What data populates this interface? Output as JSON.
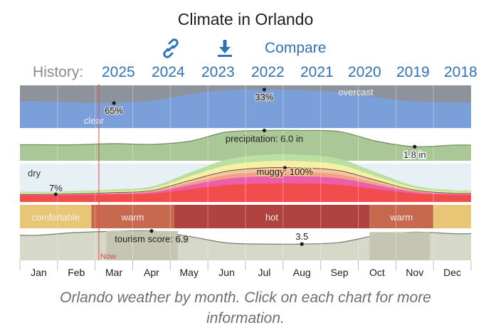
{
  "title": "Climate in Orlando",
  "toolbar": {
    "link_icon": "link-icon",
    "download_icon": "download-icon",
    "compare_label": "Compare"
  },
  "history": {
    "label": "History:",
    "years": [
      "2025",
      "2024",
      "2023",
      "2022",
      "2021",
      "2020",
      "2019",
      "2018"
    ]
  },
  "caption": "Orlando weather by month. Click on each chart for more information.",
  "chart_data": [
    {
      "type": "area",
      "name": "cloud-cover",
      "x": [
        "Jan",
        "Feb",
        "Mar",
        "Apr",
        "May",
        "Jun",
        "Jul",
        "Aug",
        "Sep",
        "Oct",
        "Nov",
        "Dec"
      ],
      "values": [
        62,
        64,
        65,
        60,
        45,
        35,
        33,
        35,
        40,
        52,
        62,
        64
      ],
      "labels": {
        "top": "overcast",
        "bottom": "clear"
      },
      "annotations": [
        {
          "x": "Mar",
          "text": "65%"
        },
        {
          "x": "Jul",
          "text": "33%"
        }
      ],
      "colors": {
        "clear": "#7a9fd9",
        "overcast": "#8e939b"
      }
    },
    {
      "type": "area",
      "name": "precipitation",
      "x": [
        "Jan",
        "Feb",
        "Mar",
        "Apr",
        "May",
        "Jun",
        "Jul",
        "Aug",
        "Sep",
        "Oct",
        "Nov",
        "Dec"
      ],
      "values": [
        2.3,
        2.3,
        2.6,
        2.4,
        3.2,
        5.6,
        6.0,
        6.0,
        5.7,
        3.2,
        1.8,
        2.2
      ],
      "annotations": [
        {
          "x": "Jul",
          "text": "precipitation: 6.0 in"
        },
        {
          "x": "Nov",
          "text": "1.8 in"
        }
      ],
      "color": "#a9c797"
    },
    {
      "type": "area",
      "name": "humidity",
      "x": [
        "Jan",
        "Feb",
        "Mar",
        "Apr",
        "May",
        "Jun",
        "Jul",
        "Aug",
        "Sep",
        "Oct",
        "Nov",
        "Dec"
      ],
      "values": [
        7,
        9,
        13,
        20,
        55,
        88,
        100,
        100,
        90,
        55,
        22,
        11
      ],
      "labels": {
        "low": "dry"
      },
      "annotations": [
        {
          "x": "Jan",
          "text": "7%"
        },
        {
          "x": "Aug",
          "text": "muggy: 100%"
        }
      ],
      "colors": [
        "#b9e0a0",
        "#f5f0a3",
        "#f7c49a",
        "#f0a08a",
        "#ec5ea9",
        "#f24d4d"
      ]
    },
    {
      "type": "bar",
      "name": "temperature-band",
      "segments": [
        {
          "label": "comfortable",
          "start": 0.0,
          "end": 1.9,
          "color": "#e8c676"
        },
        {
          "label": "warm",
          "start": 1.9,
          "end": 4.1,
          "color": "#c7694f"
        },
        {
          "label": "hot",
          "start": 4.1,
          "end": 9.3,
          "color": "#b04242"
        },
        {
          "label": "warm",
          "start": 9.3,
          "end": 11.0,
          "color": "#c7694f"
        },
        {
          "label": "",
          "start": 11.0,
          "end": 12.0,
          "color": "#e8c676"
        }
      ]
    },
    {
      "type": "area",
      "name": "tourism-score",
      "x": [
        "Jan",
        "Feb",
        "Mar",
        "Apr",
        "May",
        "Jun",
        "Jul",
        "Aug",
        "Sep",
        "Oct",
        "Nov",
        "Dec"
      ],
      "values": [
        5.8,
        6.5,
        6.8,
        6.9,
        5.5,
        3.8,
        3.5,
        3.5,
        3.9,
        5.8,
        6.6,
        6.2
      ],
      "annotations": [
        {
          "x": "Apr",
          "text": "tourism score: 6.9"
        },
        {
          "x": "Aug",
          "text": "3.5"
        }
      ],
      "now_marker": "Now",
      "color": "#d6d8c8"
    }
  ],
  "months": [
    "Jan",
    "Feb",
    "Mar",
    "Apr",
    "May",
    "Jun",
    "Jul",
    "Aug",
    "Sep",
    "Oct",
    "Nov",
    "Dec"
  ]
}
